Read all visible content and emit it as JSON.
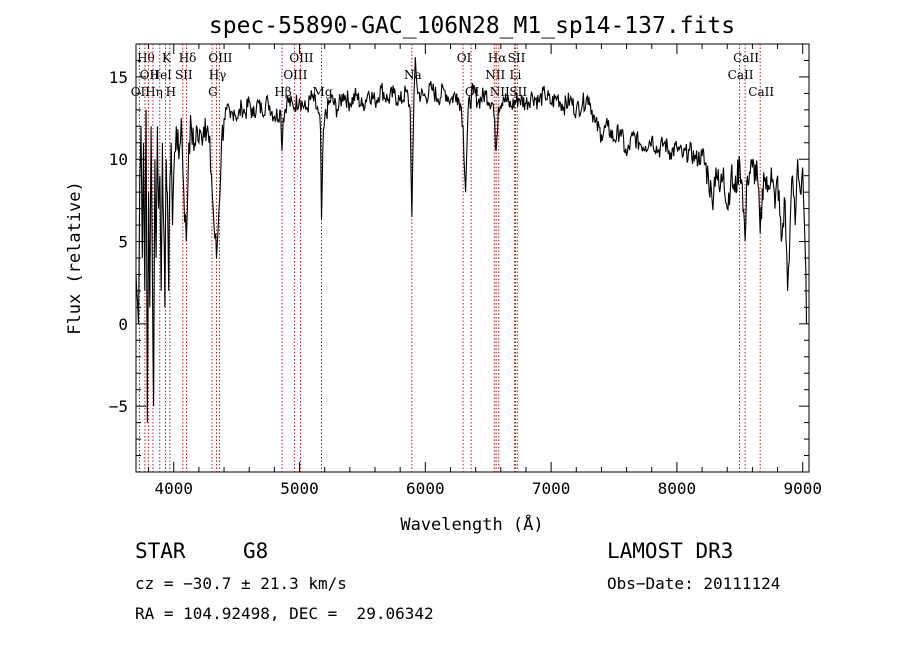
{
  "chart_data": {
    "type": "line",
    "title": "spec-55890-GAC_106N28_M1_sp14-137.fits",
    "xlabel": "Wavelength (Å)",
    "ylabel": "Flux (relative)",
    "xlim": [
      3700,
      9050
    ],
    "ylim": [
      -9,
      17
    ],
    "x_ticks": [
      4000,
      5000,
      6000,
      7000,
      8000,
      9000
    ],
    "y_ticks": [
      -5,
      0,
      5,
      10,
      15
    ],
    "line_color": "#000000",
    "marker_color": "#b00000",
    "series": [
      {
        "name": "flux",
        "points": [
          [
            3700,
            3
          ],
          [
            3720,
            0
          ],
          [
            3730,
            9
          ],
          [
            3740,
            12
          ],
          [
            3750,
            4
          ],
          [
            3760,
            11
          ],
          [
            3770,
            2
          ],
          [
            3780,
            13
          ],
          [
            3790,
            -6
          ],
          [
            3800,
            8
          ],
          [
            3810,
            1
          ],
          [
            3820,
            12
          ],
          [
            3830,
            3
          ],
          [
            3840,
            -5
          ],
          [
            3850,
            10
          ],
          [
            3860,
            4
          ],
          [
            3870,
            12
          ],
          [
            3880,
            7
          ],
          [
            3890,
            9
          ],
          [
            3900,
            2
          ],
          [
            3910,
            11
          ],
          [
            3920,
            6
          ],
          [
            3930,
            1
          ],
          [
            3940,
            10
          ],
          [
            3950,
            8
          ],
          [
            3960,
            2
          ],
          [
            3970,
            9
          ],
          [
            3980,
            11
          ],
          [
            3990,
            6
          ],
          [
            4000,
            9
          ],
          [
            4020,
            12
          ],
          [
            4040,
            10
          ],
          [
            4060,
            12.5
          ],
          [
            4080,
            8
          ],
          [
            4100,
            5
          ],
          [
            4120,
            11
          ],
          [
            4140,
            12
          ],
          [
            4160,
            10.5
          ],
          [
            4180,
            12
          ],
          [
            4200,
            11
          ],
          [
            4220,
            11.5
          ],
          [
            4250,
            12.5
          ],
          [
            4280,
            11
          ],
          [
            4300,
            9
          ],
          [
            4320,
            6
          ],
          [
            4340,
            4
          ],
          [
            4360,
            7
          ],
          [
            4380,
            11
          ],
          [
            4400,
            12.5
          ],
          [
            4420,
            13
          ],
          [
            4450,
            12.5
          ],
          [
            4480,
            13
          ],
          [
            4510,
            12.5
          ],
          [
            4540,
            13.2
          ],
          [
            4570,
            12.8
          ],
          [
            4600,
            13.5
          ],
          [
            4630,
            12.6
          ],
          [
            4660,
            13.4
          ],
          [
            4700,
            13
          ],
          [
            4750,
            13.5
          ],
          [
            4800,
            12.6
          ],
          [
            4850,
            12.9
          ],
          [
            4861,
            10.5
          ],
          [
            4870,
            12.5
          ],
          [
            4900,
            13.6
          ],
          [
            4950,
            13.2
          ],
          [
            5000,
            13.7
          ],
          [
            5050,
            13
          ],
          [
            5100,
            13.8
          ],
          [
            5150,
            12.8
          ],
          [
            5167,
            11.8
          ],
          [
            5175,
            6.3
          ],
          [
            5185,
            10.5
          ],
          [
            5200,
            12.5
          ],
          [
            5250,
            13.7
          ],
          [
            5300,
            13
          ],
          [
            5350,
            14
          ],
          [
            5400,
            13.4
          ],
          [
            5450,
            13.9
          ],
          [
            5500,
            13.2
          ],
          [
            5550,
            14.1
          ],
          [
            5600,
            13.5
          ],
          [
            5650,
            14.3
          ],
          [
            5700,
            13.6
          ],
          [
            5750,
            14
          ],
          [
            5800,
            13.5
          ],
          [
            5850,
            14.1
          ],
          [
            5880,
            13
          ],
          [
            5893,
            6.5
          ],
          [
            5905,
            12
          ],
          [
            5920,
            16.2
          ],
          [
            5940,
            14
          ],
          [
            6000,
            13.8
          ],
          [
            6050,
            14.3
          ],
          [
            6100,
            13.7
          ],
          [
            6150,
            14.2
          ],
          [
            6200,
            13.6
          ],
          [
            6250,
            14
          ],
          [
            6280,
            13.4
          ],
          [
            6300,
            12
          ],
          [
            6320,
            8
          ],
          [
            6340,
            13
          ],
          [
            6380,
            14.2
          ],
          [
            6420,
            13.5
          ],
          [
            6480,
            14
          ],
          [
            6540,
            13.3
          ],
          [
            6563,
            10.5
          ],
          [
            6580,
            13.2
          ],
          [
            6620,
            13.8
          ],
          [
            6680,
            13.2
          ],
          [
            6740,
            13.7
          ],
          [
            6800,
            13.4
          ],
          [
            6850,
            13.9
          ],
          [
            6900,
            13.5
          ],
          [
            6950,
            14
          ],
          [
            7000,
            13.4
          ],
          [
            7050,
            13.8
          ],
          [
            7100,
            13.2
          ],
          [
            7150,
            13.6
          ],
          [
            7200,
            13
          ],
          [
            7250,
            13.4
          ],
          [
            7300,
            13.8
          ],
          [
            7350,
            12.2
          ],
          [
            7400,
            11.5
          ],
          [
            7450,
            12
          ],
          [
            7500,
            11.2
          ],
          [
            7550,
            11.8
          ],
          [
            7600,
            10.2
          ],
          [
            7650,
            11.4
          ],
          [
            7700,
            11
          ],
          [
            7750,
            10.8
          ],
          [
            7800,
            11.3
          ],
          [
            7850,
            10.5
          ],
          [
            7900,
            11
          ],
          [
            7950,
            10.4
          ],
          [
            8000,
            10.7
          ],
          [
            8050,
            10.2
          ],
          [
            8100,
            10.5
          ],
          [
            8150,
            10
          ],
          [
            8200,
            10.2
          ],
          [
            8250,
            9
          ],
          [
            8280,
            7.5
          ],
          [
            8310,
            9.5
          ],
          [
            8340,
            8
          ],
          [
            8370,
            9.5
          ],
          [
            8400,
            7
          ],
          [
            8430,
            9
          ],
          [
            8460,
            8
          ],
          [
            8500,
            9.8
          ],
          [
            8520,
            8.5
          ],
          [
            8542,
            5
          ],
          [
            8560,
            9
          ],
          [
            8600,
            9.5
          ],
          [
            8640,
            9
          ],
          [
            8662,
            5.5
          ],
          [
            8690,
            9.2
          ],
          [
            8720,
            8
          ],
          [
            8750,
            9.5
          ],
          [
            8780,
            7
          ],
          [
            8800,
            9
          ],
          [
            8830,
            5
          ],
          [
            8860,
            7.5
          ],
          [
            8880,
            2
          ],
          [
            8900,
            6
          ],
          [
            8920,
            9
          ],
          [
            8940,
            6
          ],
          [
            8960,
            10
          ],
          [
            8980,
            8
          ],
          [
            9000,
            9.5
          ],
          [
            9020,
            4.5
          ],
          [
            9030,
            0
          ]
        ]
      }
    ],
    "lines": [
      {
        "wl": 3727,
        "label": "OII",
        "row": 3
      },
      {
        "wl": 3771,
        "label": "Hθ",
        "row": 1
      },
      {
        "wl": 3798,
        "label": "OII",
        "row": 2
      },
      {
        "wl": 3835,
        "label": "Hη",
        "row": 3
      },
      {
        "wl": 3889,
        "label": "HeI",
        "row": 2
      },
      {
        "wl": 3934,
        "label": "K",
        "row": 1
      },
      {
        "wl": 3969,
        "label": "H",
        "row": 3
      },
      {
        "wl": 4072,
        "label": "SII",
        "row": 2
      },
      {
        "wl": 4102,
        "label": "Hδ",
        "row": 1
      },
      {
        "wl": 4304,
        "label": "G",
        "row": 3
      },
      {
        "wl": 4340,
        "label": "Hγ",
        "row": 2
      },
      {
        "wl": 4363,
        "label": "OIII",
        "row": 1
      },
      {
        "wl": 4861,
        "label": "Hβ",
        "row": 3
      },
      {
        "wl": 4959,
        "label": "OIII",
        "row": 2
      },
      {
        "wl": 5007,
        "label": "OIII",
        "row": 1
      },
      {
        "wl": 5175,
        "label": "Mg",
        "row": 3
      },
      {
        "wl": 5893,
        "label": "Na",
        "row": 2
      },
      {
        "wl": 6300,
        "label": "OI",
        "row": 1
      },
      {
        "wl": 6364,
        "label": "OI",
        "row": 3
      },
      {
        "wl": 6548,
        "label": "NII",
        "row": 2
      },
      {
        "wl": 6563,
        "label": "Hα",
        "row": 1
      },
      {
        "wl": 6584,
        "label": "NII",
        "row": 3
      },
      {
        "wl": 6708,
        "label": "Li",
        "row": 2
      },
      {
        "wl": 6717,
        "label": "SII",
        "row": 1
      },
      {
        "wl": 6731,
        "label": "SII",
        "row": 3
      },
      {
        "wl": 8498,
        "label": "CaII",
        "row": 2
      },
      {
        "wl": 8542,
        "label": "CaII",
        "row": 1
      },
      {
        "wl": 8662,
        "label": "CaII",
        "row": 3
      }
    ]
  },
  "info": {
    "class_label": "STAR",
    "subclass": "G8",
    "survey": "LAMOST DR3",
    "cz": "cz = −30.7 ± 21.3 km/s",
    "obs_date": "Obs−Date: 20111124",
    "coords": "RA = 104.92498, DEC =  29.06342"
  }
}
